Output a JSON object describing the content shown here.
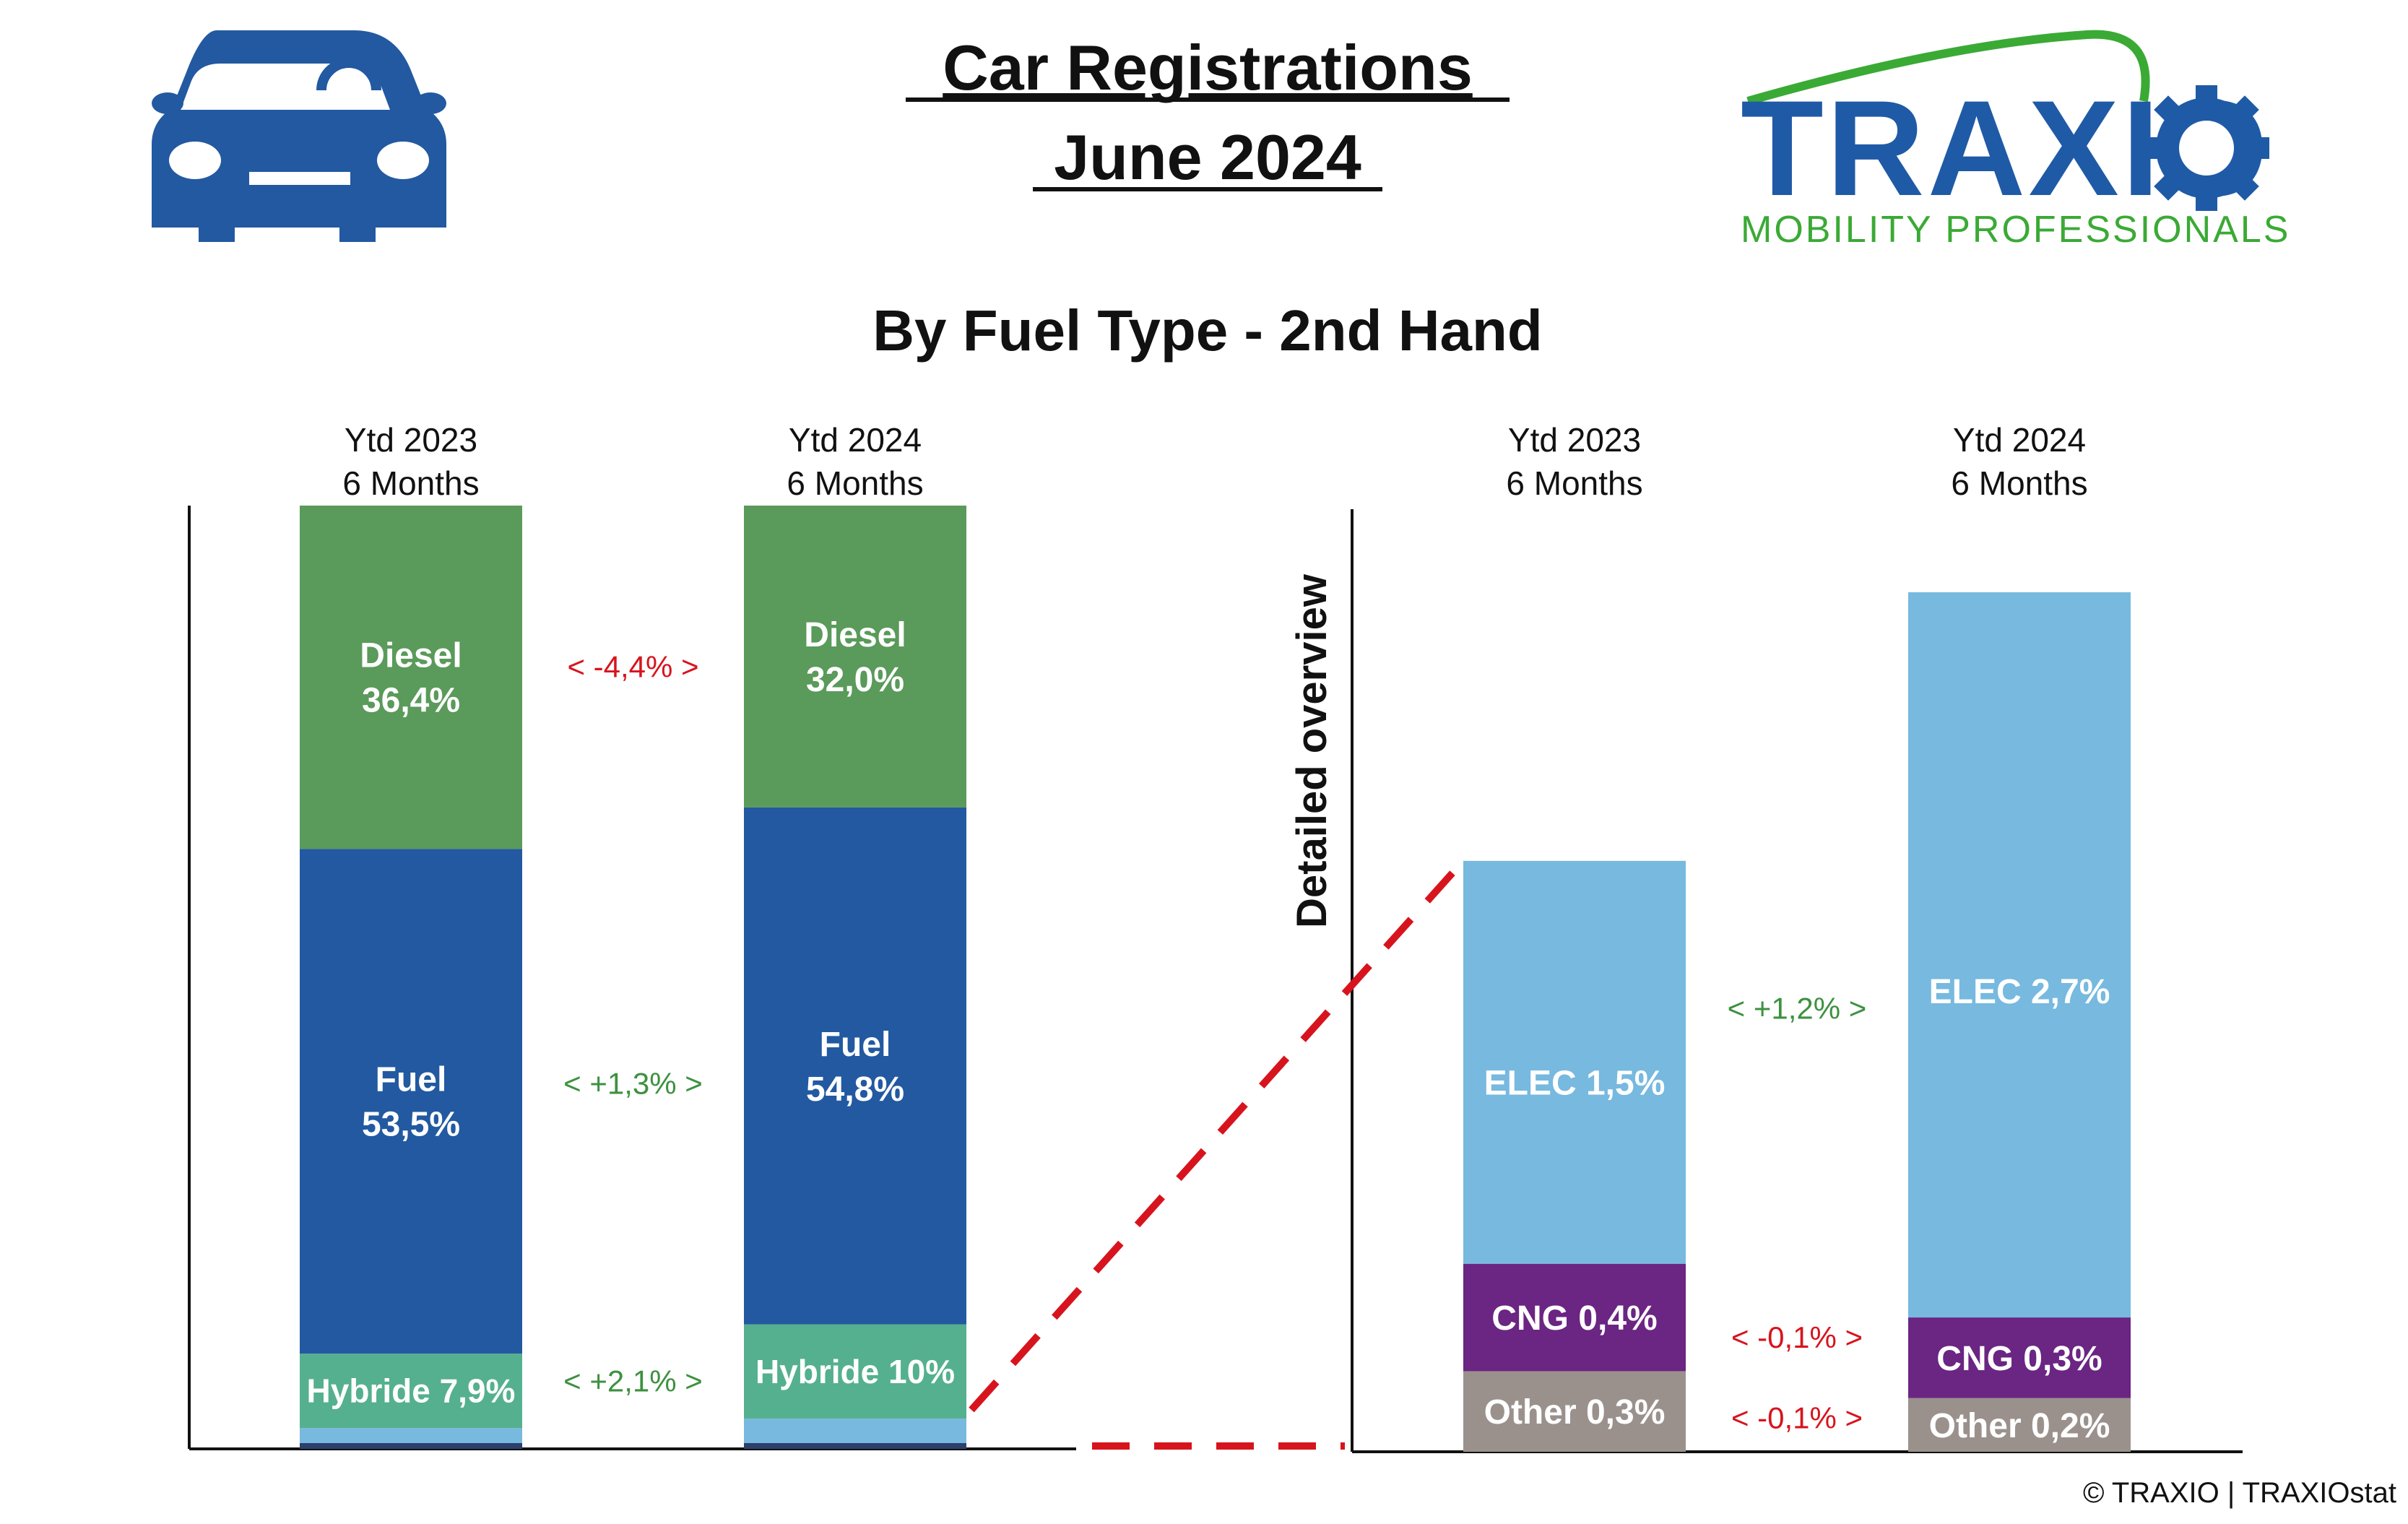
{
  "header": {
    "title_line1": "Car Registrations",
    "title_line2": "June 2024",
    "subtitle": "By Fuel Type - 2nd Hand",
    "car_icon": "car-icon"
  },
  "logo": {
    "name": "TRAXIO",
    "tagline": "MOBILITY PROFESSIONALS",
    "colors": {
      "blue": "#1f5aa6",
      "green": "#3aaa35"
    }
  },
  "copyright": "© TRAXIO | TRAXIOstat",
  "colors": {
    "diesel": "#5a9a5a",
    "fuel": "#2259a1",
    "hybride": "#55b08f",
    "elec": "#77b9df",
    "cng": "#6b2582",
    "other": "#9a918d",
    "positive": "#3d9140",
    "negative": "#d7141d",
    "dashed": "#d7141d"
  },
  "chart_data": [
    {
      "type": "bar",
      "stacked": true,
      "categories": [
        {
          "line1": "Ytd 2023",
          "line2": "6 Months"
        },
        {
          "line1": "Ytd 2024",
          "line2": "6 Months"
        }
      ],
      "series": [
        {
          "key": "elec_cng_other",
          "values": [
            2.2,
            3.2
          ],
          "color": "#77b9df",
          "labeled": false
        },
        {
          "name": "Hybride",
          "key": "hybride",
          "values": [
            7.9,
            10.0
          ],
          "labels": [
            "Hybride 7,9%",
            "Hybride 10%"
          ],
          "inline": true
        },
        {
          "name": "Fuel",
          "key": "fuel",
          "values": [
            53.5,
            54.8
          ],
          "labels": [
            "53,5%",
            "54,8%"
          ]
        },
        {
          "name": "Diesel",
          "key": "diesel",
          "values": [
            36.4,
            32.0
          ],
          "labels": [
            "36,4%",
            "32,0%"
          ]
        }
      ],
      "differences": [
        {
          "series": "diesel",
          "text": "<  -4,4%  >",
          "sign": "negative"
        },
        {
          "series": "fuel",
          "text": "<  +1,3%  >",
          "sign": "positive"
        },
        {
          "series": "hybride",
          "text": "<  +2,1%  >",
          "sign": "positive"
        }
      ],
      "ylim": [
        0,
        100
      ]
    },
    {
      "type": "bar",
      "stacked": true,
      "side_label": "Detailed overview",
      "categories": [
        {
          "line1": "Ytd 2023",
          "line2": "6 Months"
        },
        {
          "line1": "Ytd 2024",
          "line2": "6 Months"
        }
      ],
      "series": [
        {
          "key": "other",
          "name": "Other",
          "values": [
            0.3,
            0.2
          ],
          "labels": [
            "Other 0,3%",
            "Other 0,2%"
          ]
        },
        {
          "key": "cng",
          "name": "CNG",
          "values": [
            0.4,
            0.3
          ],
          "labels": [
            "CNG 0,4%",
            "CNG 0,3%"
          ]
        },
        {
          "key": "elec",
          "name": "ELEC",
          "values": [
            1.5,
            2.7
          ],
          "labels": [
            "ELEC 1,5%",
            "ELEC 2,7%"
          ]
        }
      ],
      "differences": [
        {
          "series": "elec",
          "text": "<  +1,2%  >",
          "sign": "positive"
        },
        {
          "series": "cng",
          "text": "<  -0,1%  >",
          "sign": "negative"
        },
        {
          "series": "other",
          "text": "<  -0,1%  >",
          "sign": "negative"
        }
      ]
    }
  ]
}
